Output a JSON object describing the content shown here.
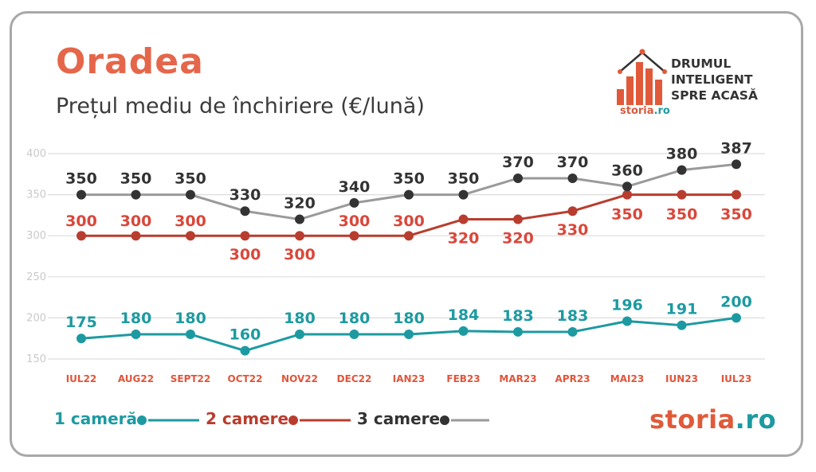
{
  "header": {
    "title": "Oradea",
    "subtitle": "Prețul mediu de închiriere (€/lună)"
  },
  "logo": {
    "line1": "DRUMUL",
    "line2": "INTELIGENT",
    "line3": "SPRE ACASĂ",
    "brand_part1": "storia",
    "brand_part2": ".ro"
  },
  "brand": {
    "part1": "storia",
    "part2": ".ro"
  },
  "colors": {
    "title": "#e5664a",
    "series_1": "#1d9aa1",
    "series_2_line": "#b83d2e",
    "series_2_label": "#d9473a",
    "series_3_line": "#9a9a9a",
    "series_3_marker": "#333333",
    "grid": "#dddddd",
    "tick_label": "#c9c9c9",
    "category_label": "#e0553a"
  },
  "chart_data": {
    "type": "line",
    "title": "Prețul mediu de închiriere (€/lună)",
    "xlabel": "",
    "ylabel": "",
    "categories": [
      "IUL22",
      "AUG22",
      "SEPT22",
      "OCT22",
      "NOV22",
      "DEC22",
      "IAN23",
      "FEB23",
      "MAR23",
      "APR23",
      "MAI23",
      "IUN23",
      "IUL23"
    ],
    "y_ticks": [
      150,
      200,
      250,
      300,
      350,
      400
    ],
    "ylim": [
      150,
      400
    ],
    "grid": true,
    "legend_position": "bottom-left",
    "series": [
      {
        "name": "1 cameră",
        "values": [
          175,
          180,
          180,
          160,
          180,
          180,
          180,
          184,
          183,
          183,
          196,
          191,
          200
        ]
      },
      {
        "name": "2 camere",
        "values": [
          300,
          300,
          300,
          300,
          300,
          300,
          300,
          320,
          320,
          330,
          350,
          350,
          350
        ]
      },
      {
        "name": "3 camere",
        "values": [
          350,
          350,
          350,
          330,
          320,
          340,
          350,
          350,
          370,
          370,
          360,
          380,
          387
        ]
      }
    ]
  }
}
